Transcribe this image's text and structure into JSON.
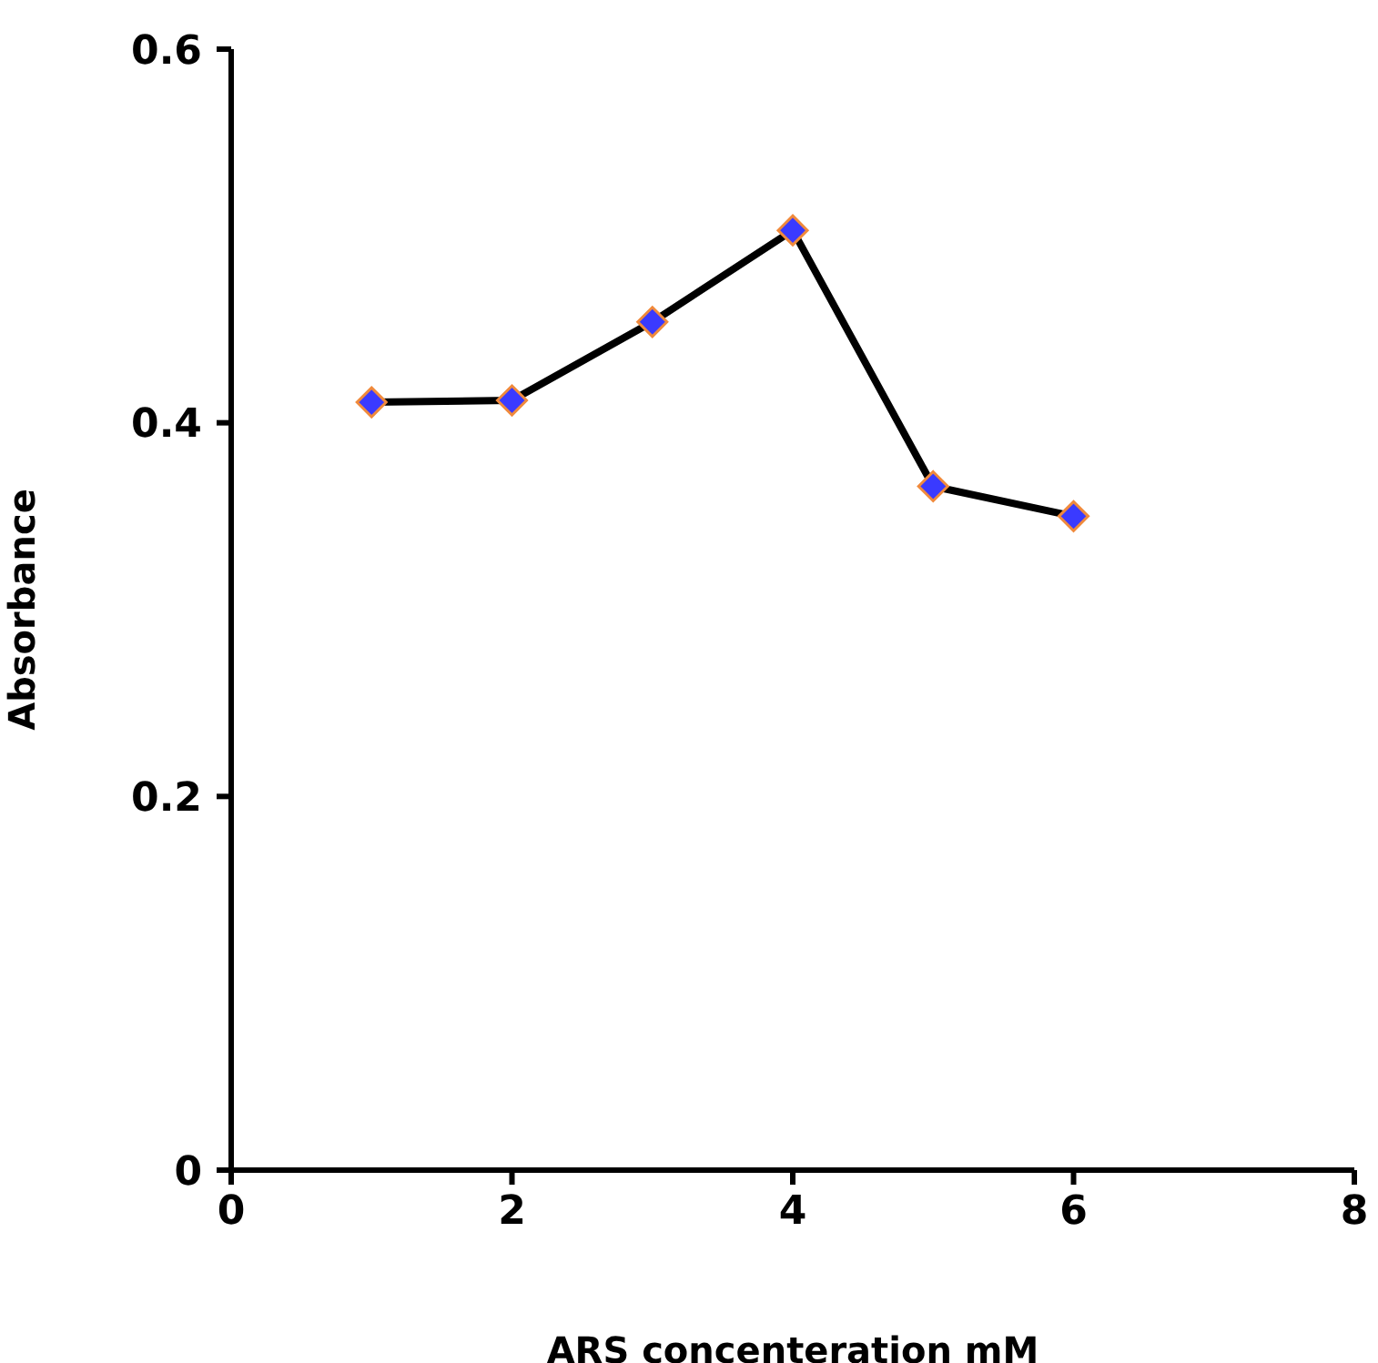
{
  "chart_data": {
    "type": "line",
    "xlabel": "ARS concenteration mM",
    "ylabel": "Absorbance",
    "x": [
      1,
      2,
      3,
      4,
      5,
      6
    ],
    "series": [
      {
        "color": "#000000",
        "values": [
          0.411,
          0.412,
          0.454,
          0.503,
          0.366,
          0.35
        ]
      }
    ],
    "xlim": [
      0,
      8
    ],
    "xticks": [
      0,
      2,
      4,
      6,
      8
    ],
    "ylim": [
      0,
      0.6
    ],
    "yticks": [
      0,
      0.2,
      0.4,
      0.6
    ],
    "grid": false,
    "legend": false,
    "marker": "diamond",
    "line_style": "solid"
  }
}
